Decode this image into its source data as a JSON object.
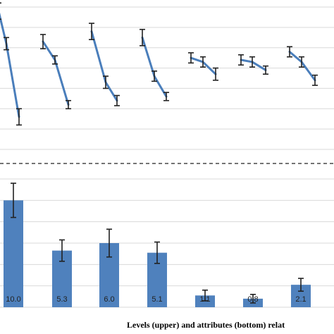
{
  "chart_data": [
    {
      "type": "line",
      "panel": "upper",
      "ylim": [
        0,
        7
      ],
      "grid": true,
      "groups": [
        {
          "values": [
            6.8,
            5.2,
            1.6
          ],
          "errors": [
            0.4,
            0.3,
            0.4
          ]
        },
        {
          "values": [
            5.3,
            4.4,
            2.2
          ],
          "errors": [
            0.35,
            0.2,
            0.2
          ]
        },
        {
          "values": [
            5.8,
            3.3,
            2.4
          ],
          "errors": [
            0.4,
            0.3,
            0.25
          ]
        },
        {
          "values": [
            5.5,
            3.6,
            2.6
          ],
          "errors": [
            0.4,
            0.25,
            0.2
          ]
        },
        {
          "values": [
            4.5,
            4.3,
            3.7
          ],
          "errors": [
            0.25,
            0.25,
            0.3
          ]
        },
        {
          "values": [
            4.4,
            4.3,
            3.9
          ],
          "errors": [
            0.25,
            0.25,
            0.2
          ]
        },
        {
          "values": [
            4.8,
            4.3,
            3.4
          ],
          "errors": [
            0.25,
            0.25,
            0.25
          ]
        }
      ]
    },
    {
      "type": "bar",
      "panel": "bottom",
      "ylim": [
        0,
        12
      ],
      "grid": true,
      "xlabel": "Levels (upper) and attributes (bottom) relat",
      "values": [
        10.0,
        5.3,
        6.0,
        5.1,
        1.1,
        0.8,
        2.1
      ],
      "labels": [
        "10.0",
        "5.3",
        "6.0",
        "5.1",
        "1.1",
        "0.8",
        "2.1"
      ],
      "errors": [
        1.6,
        1.0,
        1.3,
        1.0,
        0.5,
        0.4,
        0.6
      ]
    }
  ]
}
